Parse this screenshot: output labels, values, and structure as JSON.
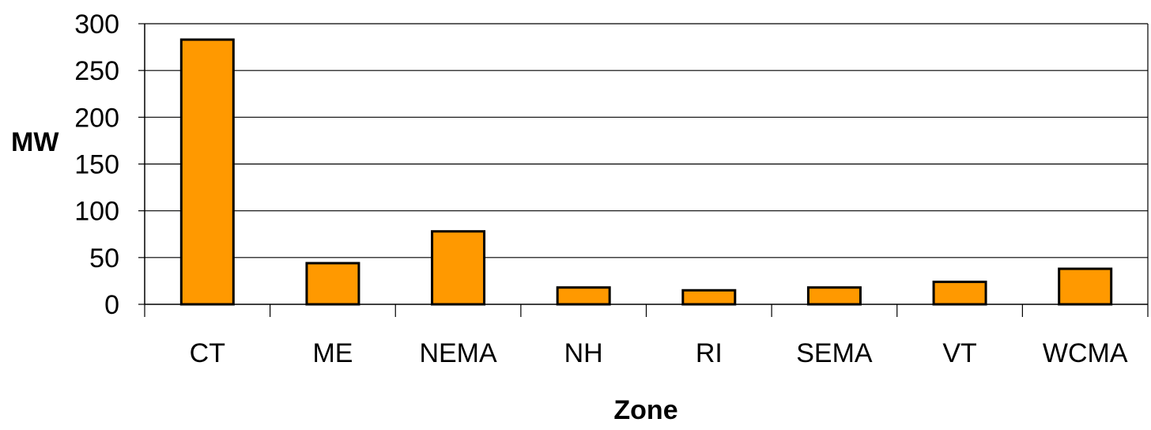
{
  "chart_data": {
    "type": "bar",
    "title": "",
    "xlabel": "Zone",
    "ylabel": "MW",
    "categories": [
      "CT",
      "ME",
      "NEMA",
      "NH",
      "RI",
      "SEMA",
      "VT",
      "WCMA"
    ],
    "values": [
      283,
      44,
      78,
      18,
      15,
      18,
      24,
      38
    ],
    "ylim": [
      0,
      300
    ],
    "yticks": [
      0,
      50,
      100,
      150,
      200,
      250,
      300
    ],
    "grid": true,
    "legend": "none",
    "bar_color": "#FF9900",
    "bar_edge_color": "#000000"
  }
}
